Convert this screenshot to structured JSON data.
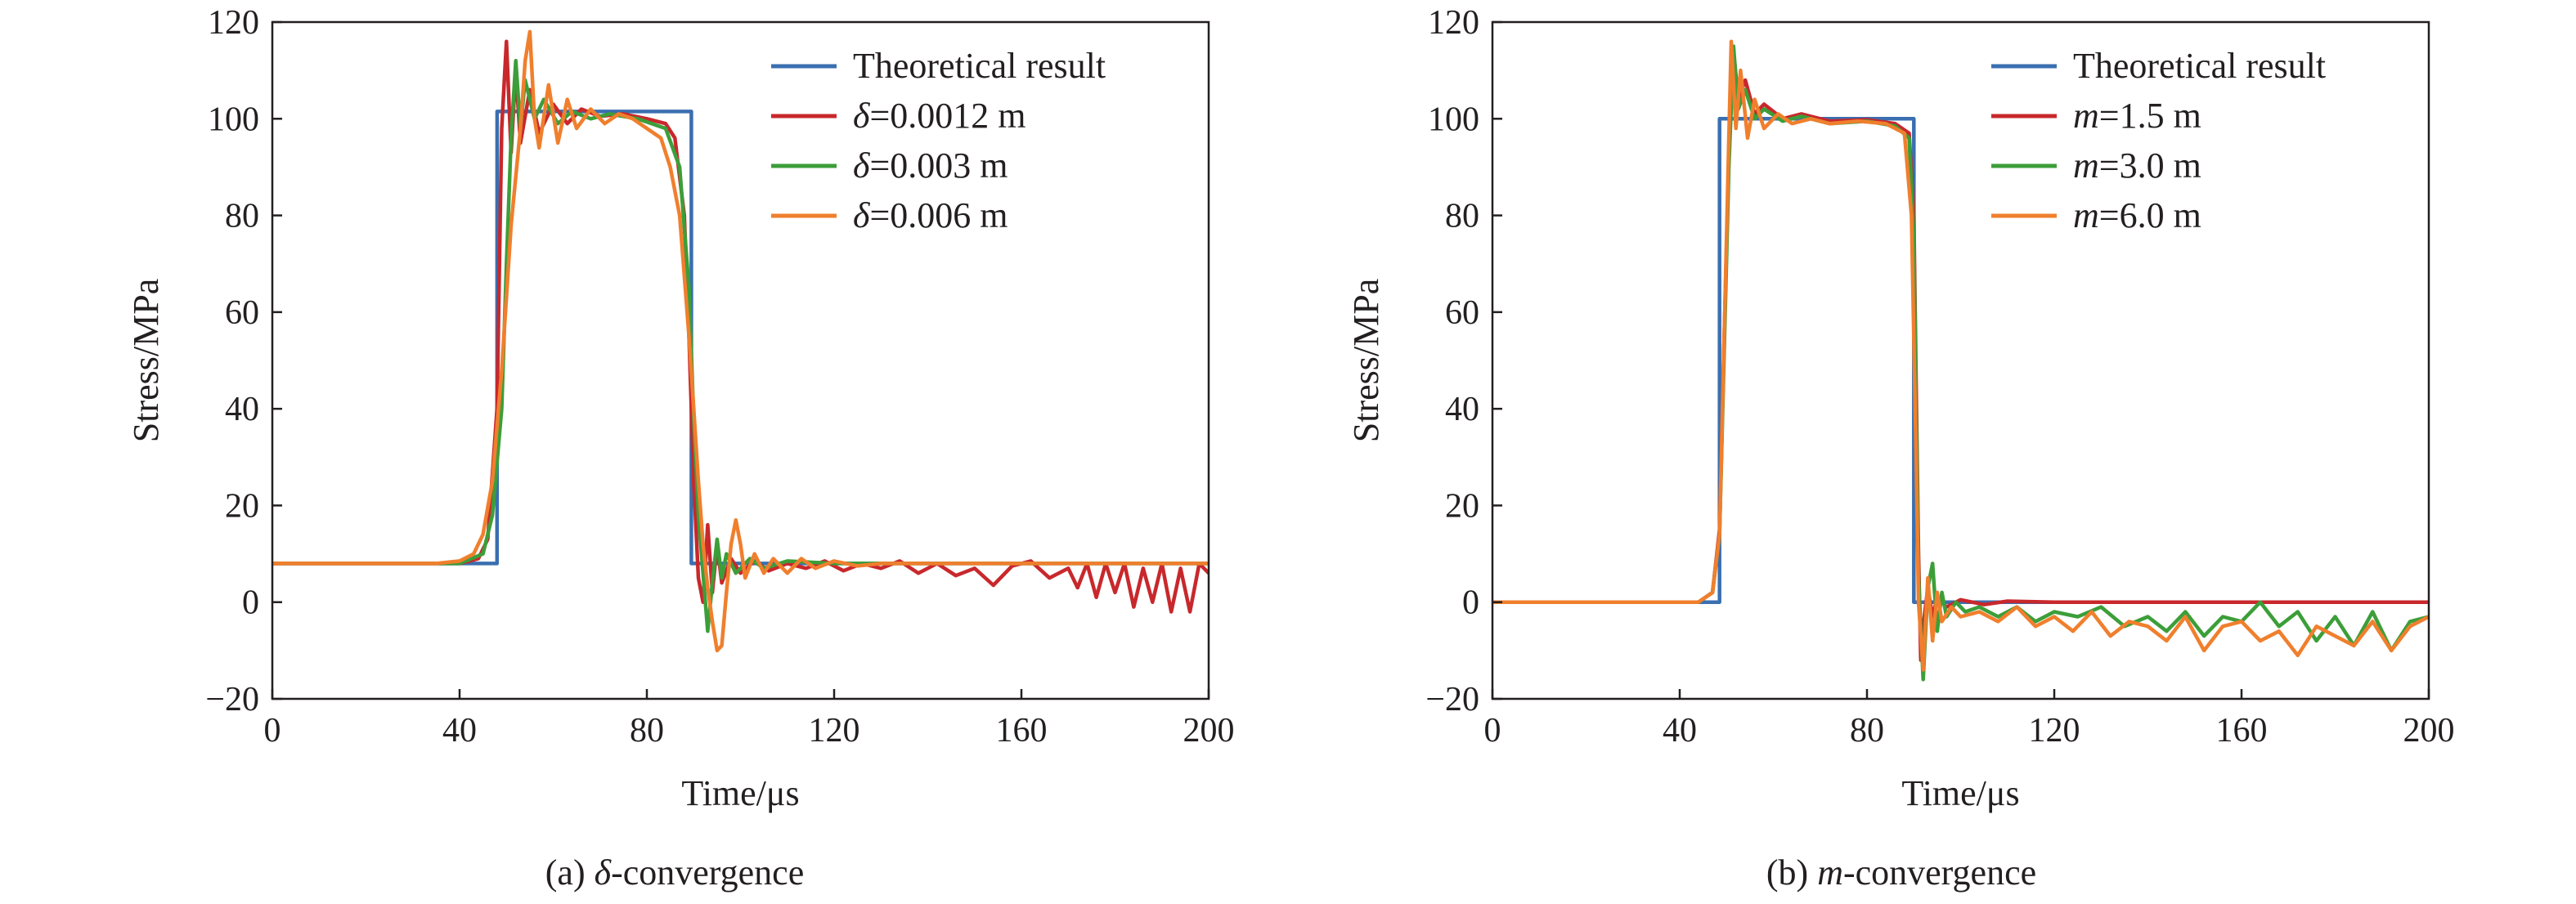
{
  "chart_data": [
    {
      "type": "line",
      "panel": "a",
      "caption": {
        "prefix": "(a) ",
        "symbol": "δ",
        "suffix": "-convergence"
      },
      "xlabel": "Time/μs",
      "ylabel": "Stress/MPa",
      "xlim": [
        0,
        200
      ],
      "ylim": [
        -20,
        120
      ],
      "xticks": [
        0,
        40,
        80,
        120,
        160,
        200
      ],
      "yticks": [
        -20,
        0,
        20,
        40,
        60,
        80,
        100,
        120
      ],
      "ytick_labels": [
        "−20",
        "0",
        "20",
        "40",
        "60",
        "80",
        "100",
        "120"
      ],
      "grid": false,
      "legend_position": "top-right",
      "series": [
        {
          "name": "Theoretical result",
          "legend": {
            "symbol": "",
            "text": "Theoretical result"
          },
          "color": "#3a6fb0",
          "x": [
            0,
            48,
            48.01,
            89.5,
            89.51,
            200
          ],
          "y": [
            8,
            8,
            101.5,
            101.5,
            8,
            8
          ]
        },
        {
          "name": "δ=0.0012 m",
          "legend": {
            "symbol": "δ",
            "text": "=0.0012 m"
          },
          "color": "#c8282c",
          "x": [
            0,
            40,
            44,
            46,
            48,
            49,
            50,
            51,
            52,
            53,
            55,
            57,
            60,
            63,
            66,
            70,
            75,
            80,
            84,
            86,
            88,
            89,
            90,
            91,
            92,
            93,
            94,
            95,
            96,
            98,
            100,
            103,
            106,
            110,
            114,
            118,
            122,
            126,
            130,
            134,
            138,
            142,
            146,
            150,
            154,
            158,
            162,
            166,
            170,
            172,
            174,
            176,
            178,
            180,
            182,
            184,
            186,
            188,
            190,
            192,
            194,
            196,
            198,
            200
          ],
          "y": [
            8,
            8,
            9,
            13,
            40,
            98,
            116,
            93,
            110,
            95,
            106,
            97,
            103,
            99,
            102,
            100.5,
            101,
            100,
            99,
            96,
            80,
            55,
            25,
            5,
            0,
            16,
            2,
            12,
            4,
            9,
            6,
            8.5,
            6.5,
            8,
            7,
            8.5,
            6.5,
            8,
            7,
            8.5,
            6,
            8,
            5.5,
            7,
            3.5,
            7.5,
            8.5,
            5,
            7,
            3,
            8,
            1,
            8,
            2,
            8,
            -1,
            7,
            0,
            8,
            -2,
            7,
            -2,
            8,
            6
          ]
        },
        {
          "name": "δ=0.003 m",
          "legend": {
            "symbol": "δ",
            "text": "=0.003 m"
          },
          "color": "#3c9e39",
          "x": [
            0,
            40,
            45,
            47,
            49,
            50,
            51,
            52,
            53,
            54,
            56,
            58,
            61,
            64,
            68,
            72,
            78,
            84,
            87,
            89,
            90,
            91,
            92,
            93,
            94,
            95,
            96,
            97,
            99,
            102,
            105,
            110,
            120,
            130,
            140,
            150,
            160,
            170,
            180,
            190,
            200
          ],
          "y": [
            8,
            8,
            10,
            18,
            40,
            70,
            96,
            112,
            98,
            108,
            100,
            104,
            99,
            101.5,
            100,
            101,
            100,
            98,
            90,
            65,
            38,
            18,
            6,
            -6,
            4,
            13,
            5,
            10,
            6,
            9,
            7,
            8.5,
            8,
            8,
            8,
            8,
            8,
            8,
            8,
            8,
            8
          ]
        },
        {
          "name": "δ=0.006 m",
          "legend": {
            "symbol": "δ",
            "text": "=0.006 m"
          },
          "color": "#f07f2d",
          "x": [
            0,
            35,
            40,
            43,
            45,
            47,
            49,
            51,
            53,
            54,
            55,
            56,
            57,
            59,
            61,
            63,
            65,
            68,
            71,
            74,
            77,
            80,
            83,
            85,
            87,
            89,
            90,
            91,
            92,
            93,
            94,
            95,
            96,
            97,
            98,
            99,
            100,
            101,
            103,
            105,
            107,
            110,
            113,
            116,
            120,
            125,
            130,
            140,
            150,
            160,
            170,
            180,
            190,
            200
          ],
          "y": [
            8,
            8,
            8.5,
            10,
            14,
            25,
            48,
            78,
            98,
            112,
            118,
            100,
            94,
            107,
            95,
            104,
            98,
            102,
            99,
            101,
            100,
            98,
            96,
            90,
            80,
            55,
            40,
            25,
            12,
            3,
            -4,
            -10,
            -9,
            2,
            12,
            17,
            12,
            5,
            10,
            6,
            9,
            6,
            9,
            7,
            8.5,
            7.5,
            8,
            8,
            8,
            8,
            8,
            8,
            8,
            8
          ]
        }
      ]
    },
    {
      "type": "line",
      "panel": "b",
      "caption": {
        "prefix": "(b) ",
        "symbol": "m",
        "suffix": "-convergence"
      },
      "xlabel": "Time/μs",
      "ylabel": "Stress/MPa",
      "xlim": [
        0,
        200
      ],
      "ylim": [
        -20,
        120
      ],
      "xticks": [
        0,
        40,
        80,
        120,
        160,
        200
      ],
      "yticks": [
        -20,
        0,
        20,
        40,
        60,
        80,
        100,
        120
      ],
      "ytick_labels": [
        "−20",
        "0",
        "20",
        "40",
        "60",
        "80",
        "100",
        "120"
      ],
      "grid": false,
      "legend_position": "top-right",
      "series": [
        {
          "name": "Theoretical result",
          "legend": {
            "symbol": "",
            "text": "Theoretical result"
          },
          "color": "#3a6fb0",
          "x": [
            0,
            48.5,
            48.51,
            90,
            90.01,
            200
          ],
          "y": [
            0,
            0,
            100,
            100,
            0,
            0
          ]
        },
        {
          "name": "m=1.5 m",
          "legend": {
            "symbol": "m",
            "text": "=1.5 m"
          },
          "color": "#c8282c",
          "x": [
            0,
            44,
            47,
            48.5,
            49.5,
            50.5,
            51.5,
            52.5,
            54,
            56,
            58,
            62,
            66,
            72,
            80,
            86,
            89,
            90,
            90.5,
            91,
            91.5,
            92,
            93,
            94,
            95,
            97,
            100,
            105,
            110,
            120,
            140,
            160,
            180,
            200
          ],
          "y": [
            0,
            0,
            2,
            15,
            55,
            92,
            114,
            104,
            108,
            101,
            103,
            100,
            101,
            99.5,
            99.8,
            99,
            97,
            80,
            45,
            10,
            -12,
            -5,
            3,
            -3,
            1,
            -1,
            0.5,
            -0.5,
            0.2,
            0,
            0,
            0,
            0,
            0
          ]
        },
        {
          "name": "m=3.0 m",
          "legend": {
            "symbol": "m",
            "text": "=3.0 m"
          },
          "color": "#3c9e39",
          "x": [
            0,
            44,
            47,
            48.5,
            49.5,
            50.5,
            51.5,
            52.5,
            54,
            56,
            58,
            62,
            66,
            72,
            80,
            86,
            89,
            90,
            90.5,
            91,
            92,
            93,
            94,
            95,
            96,
            97,
            99,
            101,
            104,
            108,
            112,
            116,
            120,
            125,
            130,
            135,
            140,
            144,
            148,
            152,
            156,
            160,
            164,
            168,
            172,
            176,
            180,
            184,
            188,
            192,
            196,
            200
          ],
          "y": [
            0,
            0,
            2,
            14,
            52,
            90,
            115,
            102,
            106,
            100,
            102,
            99.5,
            100.5,
            99,
            99.5,
            98.5,
            96,
            75,
            40,
            5,
            -16,
            3,
            8,
            -6,
            2,
            -3,
            0,
            -2,
            -1,
            -3,
            -1,
            -4,
            -2,
            -3,
            -1,
            -5,
            -3,
            -6,
            -2,
            -7,
            -3,
            -4,
            0,
            -5,
            -2,
            -8,
            -3,
            -9,
            -2,
            -10,
            -4,
            -3
          ]
        },
        {
          "name": "m=6.0 m",
          "legend": {
            "symbol": "m",
            "text": "=6.0 m"
          },
          "color": "#f07f2d",
          "x": [
            0,
            44,
            47,
            48.5,
            49.5,
            50.5,
            51,
            52,
            53,
            54.5,
            56,
            58,
            61,
            64,
            68,
            72,
            78,
            84,
            88,
            89.5,
            90.5,
            91,
            92,
            93,
            94,
            95,
            96,
            98,
            100,
            104,
            108,
            112,
            116,
            120,
            124,
            128,
            132,
            136,
            140,
            144,
            148,
            152,
            156,
            160,
            164,
            168,
            172,
            176,
            180,
            184,
            188,
            192,
            196,
            200
          ],
          "y": [
            0,
            0,
            2,
            14,
            55,
            96,
            116,
            98,
            110,
            96,
            104,
            98,
            101,
            99,
            100,
            99,
            99.5,
            99,
            97,
            80,
            30,
            0,
            -14,
            5,
            -8,
            2,
            -4,
            -1,
            -3,
            -2,
            -4,
            -1,
            -5,
            -3,
            -6,
            -2,
            -7,
            -4,
            -5,
            -8,
            -3,
            -10,
            -5,
            -4,
            -8,
            -6,
            -11,
            -5,
            -7,
            -9,
            -4,
            -10,
            -5,
            -3
          ]
        }
      ]
    }
  ]
}
